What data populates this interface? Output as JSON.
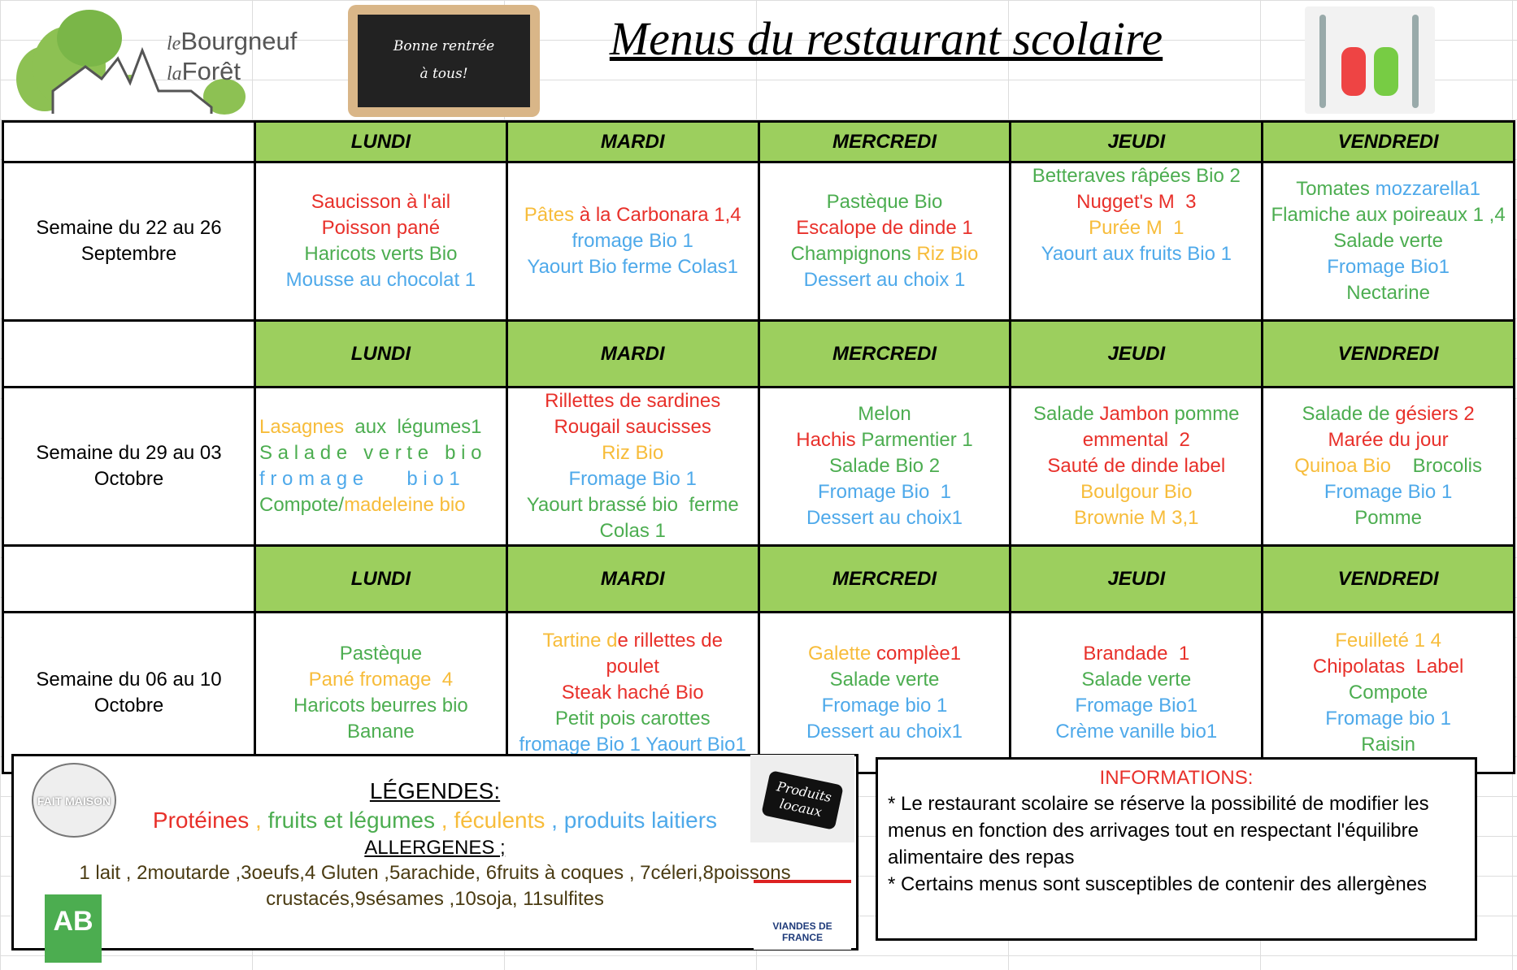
{
  "header": {
    "logo_text_1": "le",
    "logo_text_2": "Bourgneuf",
    "logo_text_3": "la",
    "logo_text_4": "Forêt",
    "chalkboard_line_1": "Bonne rentrée",
    "chalkboard_line_2": "à tous!",
    "title": "Menus du restaurant scolaire"
  },
  "colors": {
    "r": "#e8302a",
    "g": "#4cad50",
    "o": "#f7bc3a",
    "b": "#4ea9ea",
    "header_bg": "#9ccf5e"
  },
  "days": [
    "LUNDI",
    "MARDI",
    "MERCREDI",
    "JEUDI",
    "VENDREDI"
  ],
  "weeks": [
    {
      "label": "Semaine du 22 au 26 Septembre",
      "days": [
        [
          [
            [
              "Saucisson à l'ail",
              "r"
            ]
          ],
          [
            [
              "Poisson pané",
              "r"
            ]
          ],
          [
            [
              "Haricots verts Bio",
              "g"
            ]
          ],
          [
            [
              "Mousse au chocolat 1",
              "b"
            ]
          ]
        ],
        [
          [
            [
              "Pâtes",
              "o"
            ],
            [
              " à la Carbonara 1,4",
              "r"
            ]
          ],
          [
            [
              "fromage Bio 1",
              "b"
            ]
          ],
          [
            [
              "Yaourt Bio ferme Colas1",
              "b"
            ]
          ]
        ],
        [
          [
            [
              "Pastèque Bio",
              "g"
            ]
          ],
          [
            [
              "Escalope de dinde 1",
              "r"
            ]
          ],
          [
            [
              "Champignons ",
              "g"
            ],
            [
              "Riz Bio",
              "o"
            ]
          ],
          [
            [
              "Dessert au choix 1",
              "b"
            ]
          ]
        ],
        [
          [
            [
              "Betteraves râpées Bio 2",
              "g"
            ]
          ],
          [
            [
              "Nugget's M  3",
              "r"
            ]
          ],
          [
            [
              "Purée M  1",
              "o"
            ]
          ],
          [
            [
              "Yaourt aux fruits Bio 1",
              "b"
            ]
          ],
          [
            [
              " ",
              "g"
            ]
          ],
          [
            [
              " ",
              "g"
            ]
          ]
        ],
        [
          [
            [
              "Tomates ",
              "g"
            ],
            [
              "mozzarella1",
              "b"
            ]
          ],
          [
            [
              "Flamiche aux poireaux 1 ,4",
              "g"
            ]
          ],
          [
            [
              "Salade verte",
              "g"
            ]
          ],
          [
            [
              "Fromage Bio1",
              "b"
            ]
          ],
          [
            [
              "Nectarine",
              "g"
            ]
          ]
        ]
      ]
    },
    {
      "label": "Semaine du 29 au 03 Octobre",
      "days": [
        [
          [
            [
              "Lasagnes",
              "o"
            ],
            [
              "  aux  légumes1",
              "g"
            ]
          ],
          [
            [
              "S a l a d e   v e r t e   b i o",
              "g"
            ]
          ],
          [
            [
              "f r o m a g e        b i o 1",
              "b"
            ]
          ],
          [
            [
              "Compote/",
              "g"
            ],
            [
              "madeleine bio",
              "o"
            ]
          ]
        ],
        [
          [
            [
              "Rillettes de sardines",
              "r"
            ]
          ],
          [
            [
              "Rougail saucisses",
              "r"
            ]
          ],
          [
            [
              "Riz Bio",
              "o"
            ]
          ],
          [
            [
              "Fromage Bio 1",
              "b"
            ]
          ],
          [
            [
              "Yaourt brassé bio  ferme",
              "g"
            ]
          ],
          [
            [
              "Colas 1",
              "g"
            ]
          ]
        ],
        [
          [
            [
              "Melon",
              "g"
            ]
          ],
          [
            [
              "Hachis ",
              "r"
            ],
            [
              "Parmentier 1",
              "g"
            ]
          ],
          [
            [
              "Salade Bio 2",
              "g"
            ]
          ],
          [
            [
              "Fromage Bio  1",
              "b"
            ]
          ],
          [
            [
              "Dessert au choix1",
              "b"
            ]
          ]
        ],
        [
          [
            [
              "Salade ",
              "g"
            ],
            [
              "Jambon ",
              "r"
            ],
            [
              "pomme",
              "g"
            ]
          ],
          [
            [
              "emmental  2",
              "r"
            ]
          ],
          [
            [
              "Sauté de dinde label",
              "r"
            ]
          ],
          [
            [
              "Boulgour Bio",
              "o"
            ]
          ],
          [
            [
              "Brownie M 3,1",
              "o"
            ]
          ]
        ],
        [
          [
            [
              "Salade de ",
              "g"
            ],
            [
              "gésiers 2",
              "r"
            ]
          ],
          [
            [
              "Marée du jour",
              "r"
            ]
          ],
          [
            [
              "Quinoa Bio",
              "o"
            ],
            [
              "    Brocolis",
              "g"
            ]
          ],
          [
            [
              "Fromage Bio 1",
              "b"
            ]
          ],
          [
            [
              "Pomme",
              "g"
            ]
          ]
        ]
      ]
    },
    {
      "label": "Semaine du 06 au 10 Octobre",
      "days": [
        [
          [
            [
              "Pastèque",
              "g"
            ]
          ],
          [
            [
              "Pané fromage  4",
              "o"
            ]
          ],
          [
            [
              "Haricots beurres bio",
              "g"
            ]
          ],
          [
            [
              "Banane",
              "g"
            ]
          ]
        ],
        [
          [
            [
              "Tartine d",
              "o"
            ],
            [
              "e rillettes de",
              "r"
            ]
          ],
          [
            [
              "poulet",
              "r"
            ]
          ],
          [
            [
              "Steak haché Bio",
              "r"
            ]
          ],
          [
            [
              "Petit pois carottes",
              "g"
            ]
          ],
          [
            [
              "fromage Bio 1 Yaourt Bio1",
              "b"
            ]
          ]
        ],
        [
          [
            [
              "Galette ",
              "o"
            ],
            [
              "complèe1",
              "r"
            ]
          ],
          [
            [
              "Salade verte",
              "g"
            ]
          ],
          [
            [
              "Fromage bio 1",
              "b"
            ]
          ],
          [
            [
              "Dessert au choix1",
              "b"
            ]
          ]
        ],
        [
          [
            [
              "Brandade  1",
              "r"
            ]
          ],
          [
            [
              "Salade verte",
              "g"
            ]
          ],
          [
            [
              "Fromage Bio1",
              "b"
            ]
          ],
          [
            [
              "Crème vanille bio1",
              "b"
            ]
          ]
        ],
        [
          [
            [
              "Feuilleté 1 4",
              "o"
            ]
          ],
          [
            [
              "Chipolatas  Label",
              "r"
            ]
          ],
          [
            [
              "Compote",
              "g"
            ]
          ],
          [
            [
              "Fromage bio 1",
              "b"
            ]
          ],
          [
            [
              "Raisin",
              "g"
            ]
          ]
        ]
      ]
    }
  ],
  "legend": {
    "fait_maison": "FAIT MAISON",
    "title": "LÉGENDES:",
    "categories": [
      [
        "Protéines",
        "r"
      ],
      [
        " , ",
        "o"
      ],
      [
        "fruits et légumes",
        "g"
      ],
      [
        " , ",
        "o"
      ],
      [
        "féculents",
        "o"
      ],
      [
        " , ",
        "b"
      ],
      [
        "produits laitiers",
        "b"
      ]
    ],
    "allergens_title": "ALLERGENES ;",
    "allergens": "1 lait , 2moutarde ,3oeufs,4  Gluten ,5arachide, 6fruits à coques , 7céleri,8poissons crustacés,9sésames ,10soja, 11sulfites",
    "ab_logo": "AB",
    "produits_locaux": "Produits locaux",
    "viandes_de_france": "VIANDES DE FRANCE"
  },
  "info": {
    "title": "INFORMATIONS:",
    "line_1": "* Le restaurant scolaire se réserve la possibilité de modifier les menus en fonction des arrivages tout en respectant l'équilibre alimentaire des repas",
    "line_2": "* Certains menus sont susceptibles de contenir des allergènes"
  }
}
